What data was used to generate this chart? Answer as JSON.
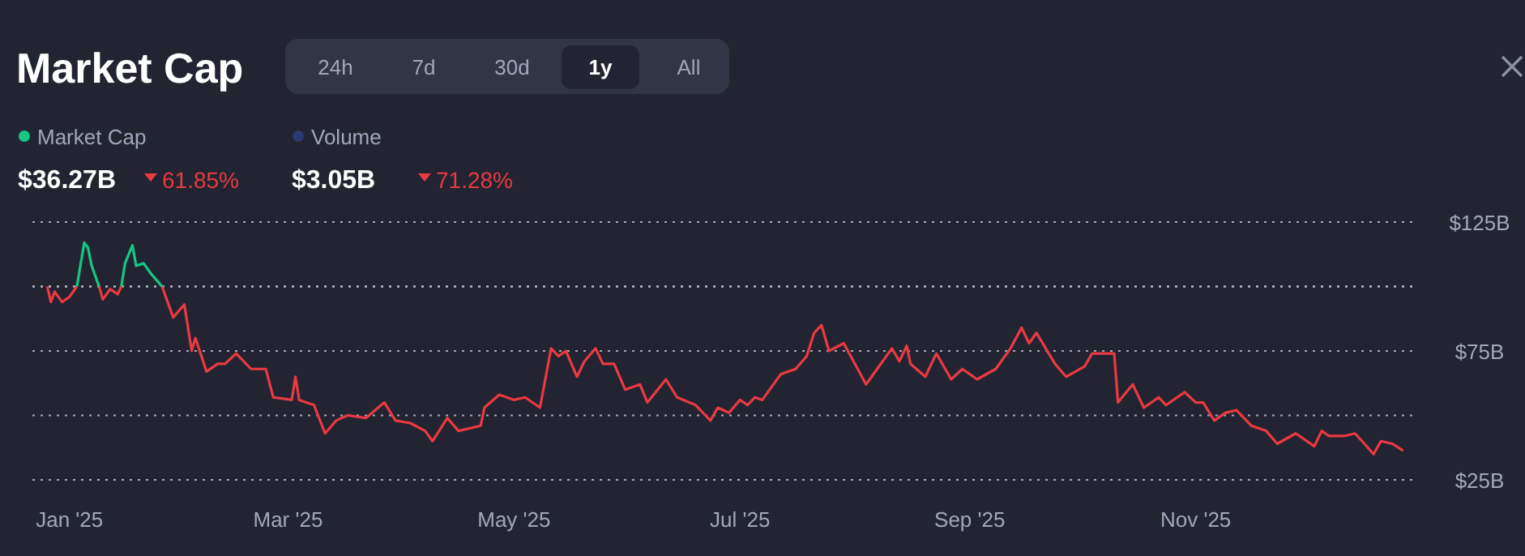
{
  "chart_data": {
    "type": "line",
    "title": "Market Cap",
    "annotations": [
      "24h",
      "7d",
      "30d",
      "1y",
      "All",
      "Market Cap",
      "$36.27B",
      "61.85%",
      "Volume",
      "$3.05B",
      "71.28%"
    ],
    "x": [
      "2024-12-26",
      "2024-12-27",
      "2024-12-28",
      "2024-12-30",
      "2025-01-01",
      "2025-01-03",
      "2025-01-05",
      "2025-01-06",
      "2025-01-07",
      "2025-01-09",
      "2025-01-10",
      "2025-01-12",
      "2025-01-14",
      "2025-01-15",
      "2025-01-16",
      "2025-01-18",
      "2025-01-19",
      "2025-01-21",
      "2025-01-23",
      "2025-01-26",
      "2025-01-29",
      "2025-02-01",
      "2025-02-03",
      "2025-02-04",
      "2025-02-07",
      "2025-02-10",
      "2025-02-12",
      "2025-02-15",
      "2025-02-19",
      "2025-02-23",
      "2025-02-25",
      "2025-03-02",
      "2025-03-03",
      "2025-03-04",
      "2025-03-08",
      "2025-03-11",
      "2025-03-14",
      "2025-03-17",
      "2025-03-22",
      "2025-03-27",
      "2025-03-30",
      "2025-04-03",
      "2025-04-07",
      "2025-04-09",
      "2025-04-13",
      "2025-04-16",
      "2025-04-22",
      "2025-04-23",
      "2025-04-27",
      "2025-05-01",
      "2025-05-04",
      "2025-05-08",
      "2025-05-11",
      "2025-05-13",
      "2025-05-15",
      "2025-05-18",
      "2025-05-20",
      "2025-05-23",
      "2025-05-25",
      "2025-05-28",
      "2025-05-31",
      "2025-06-04",
      "2025-06-06",
      "2025-06-11",
      "2025-06-14",
      "2025-06-19",
      "2025-06-23",
      "2025-06-25",
      "2025-06-28",
      "2025-07-01",
      "2025-07-03",
      "2025-07-05",
      "2025-07-07",
      "2025-07-12",
      "2025-07-16",
      "2025-07-19",
      "2025-07-21",
      "2025-07-23",
      "2025-07-25",
      "2025-07-29",
      "2025-08-04",
      "2025-08-07",
      "2025-08-11",
      "2025-08-13",
      "2025-08-15",
      "2025-08-16",
      "2025-08-20",
      "2025-08-23",
      "2025-08-27",
      "2025-08-30",
      "2025-09-03",
      "2025-09-08",
      "2025-09-12",
      "2025-09-15",
      "2025-09-17",
      "2025-09-19",
      "2025-09-24",
      "2025-09-27",
      "2025-10-02",
      "2025-10-04",
      "2025-10-08",
      "2025-10-10",
      "2025-10-11",
      "2025-10-15",
      "2025-10-18",
      "2025-10-22",
      "2025-10-24",
      "2025-10-29",
      "2025-11-01",
      "2025-11-03",
      "2025-11-06",
      "2025-11-09",
      "2025-11-12",
      "2025-11-16",
      "2025-11-20",
      "2025-11-23",
      "2025-11-28",
      "2025-12-03",
      "2025-12-05",
      "2025-12-07",
      "2025-12-11",
      "2025-12-14",
      "2025-12-19",
      "2025-12-21",
      "2025-12-24",
      "2025-12-27"
    ],
    "series": [
      {
        "color": "#16c784",
        "values": [
          null,
          null,
          null,
          null,
          null,
          100,
          117,
          115,
          108,
          100,
          null,
          null,
          null,
          100,
          109,
          116,
          108,
          109,
          105,
          100,
          null,
          null,
          null,
          null,
          null,
          null,
          null,
          null,
          null,
          null,
          null,
          null,
          null,
          null,
          null,
          null,
          null,
          null,
          null,
          null,
          null,
          null,
          null,
          null,
          null,
          null,
          null,
          null,
          null,
          null,
          null,
          null,
          null,
          null,
          null,
          null,
          null,
          null,
          null,
          null,
          null,
          null,
          null,
          null,
          null,
          null,
          null,
          null,
          null,
          null,
          null,
          null,
          null,
          null,
          null,
          null,
          null,
          null,
          null,
          null,
          null,
          null,
          null,
          null,
          null,
          null,
          null,
          null,
          null,
          null,
          null,
          null,
          null,
          null,
          null,
          null,
          null,
          null,
          null,
          null,
          null,
          null,
          null,
          null,
          null,
          null,
          null,
          null,
          null,
          null,
          null,
          null,
          null,
          null,
          null,
          null,
          null,
          null,
          null,
          null,
          null,
          null,
          null,
          null,
          null,
          null
        ]
      },
      {
        "color": "#ea3943",
        "values": [
          100,
          94,
          98,
          94,
          96,
          100,
          null,
          null,
          null,
          100,
          95,
          99,
          97,
          100,
          null,
          null,
          null,
          null,
          null,
          100,
          88,
          93,
          75,
          80,
          67,
          70,
          70,
          74,
          68,
          68,
          57,
          56,
          65,
          56,
          54,
          43,
          48,
          50,
          49,
          55,
          48,
          47,
          44,
          40,
          49,
          44,
          46,
          53,
          58,
          56,
          57,
          53,
          76,
          73,
          75,
          65,
          71,
          76,
          70,
          70,
          60,
          62,
          55,
          64,
          57,
          54,
          48,
          53,
          51,
          56,
          54,
          57,
          56,
          66,
          68,
          73,
          82,
          85,
          75,
          78,
          62,
          68,
          76,
          71,
          77,
          70,
          65,
          74,
          64,
          68,
          64,
          68,
          76,
          84,
          78,
          82,
          70,
          65,
          69,
          74,
          74,
          74,
          55,
          62,
          53,
          57,
          54,
          59,
          55,
          55,
          48,
          51,
          52,
          46,
          44,
          39,
          43,
          38,
          44,
          42,
          42,
          43,
          35,
          40,
          39,
          36.3
        ]
      }
    ],
    "xlim": [
      "2024-12-22",
      "2025-12-31"
    ],
    "xticks": [
      {
        "value": "2025-01-01",
        "label": "Jan '25"
      },
      {
        "value": "2025-03-01",
        "label": "Mar '25"
      },
      {
        "value": "2025-05-01",
        "label": "May '25"
      },
      {
        "value": "2025-07-01",
        "label": "Jul '25"
      },
      {
        "value": "2025-09-01",
        "label": "Sep '25"
      },
      {
        "value": "2025-11-01",
        "label": "Nov '25"
      }
    ],
    "ylim": [
      25,
      125
    ],
    "yticks": [
      {
        "value": 25,
        "label": "$25B"
      },
      {
        "value": 50,
        "label": null
      },
      {
        "value": 75,
        "label": "$75B"
      },
      {
        "value": 125,
        "label": "$125B"
      }
    ],
    "ref_lines": [
      {
        "axis": "y",
        "value": 100
      }
    ],
    "grid": "y"
  }
}
